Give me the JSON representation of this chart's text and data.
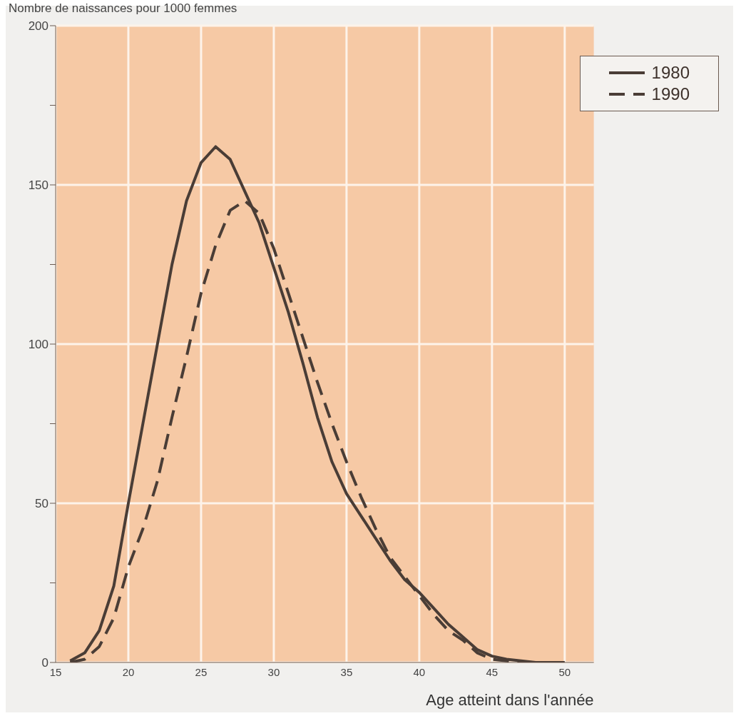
{
  "chart_data": {
    "type": "line",
    "ylabel": "Nombre de naissances pour 1000 femmes",
    "xlabel": "Age atteint dans l'année",
    "x": [
      16,
      17,
      18,
      19,
      20,
      21,
      22,
      23,
      24,
      25,
      26,
      27,
      28,
      29,
      30,
      31,
      32,
      33,
      34,
      35,
      36,
      37,
      38,
      39,
      40,
      41,
      42,
      43,
      44,
      45,
      46,
      47,
      48,
      49,
      50
    ],
    "series": [
      {
        "name": "1980",
        "color": "#4a3d36",
        "line_style": "solid",
        "values": [
          0.5,
          3,
          10,
          24,
          50,
          75,
          100,
          125,
          145,
          157,
          162,
          158,
          148,
          138,
          124,
          110,
          94,
          77,
          63,
          53,
          46,
          39,
          32,
          26,
          22,
          17,
          12,
          8,
          4,
          2,
          1,
          0.5,
          0,
          0,
          0
        ]
      },
      {
        "name": "1990",
        "color": "#4a3d36",
        "line_style": "dashed",
        "values": [
          0,
          1,
          5,
          14,
          30,
          42,
          57,
          77,
          96,
          116,
          131,
          142,
          145,
          141,
          130,
          116,
          102,
          88,
          75,
          63,
          52,
          42,
          33,
          27,
          21,
          15,
          10,
          7,
          3,
          1,
          0.5,
          0,
          0,
          0,
          0
        ]
      }
    ],
    "xlim": [
      15,
      52
    ],
    "xticks": [
      15,
      20,
      25,
      30,
      35,
      40,
      45,
      50
    ],
    "ylim": [
      0,
      200
    ],
    "yticks": [
      0,
      {
        "value": 25,
        "label": null
      },
      50,
      {
        "value": 75,
        "label": null
      },
      100,
      {
        "value": 125,
        "label": null
      },
      150,
      {
        "value": 175,
        "label": null
      },
      200
    ],
    "grid": true,
    "legend": "top right",
    "marker": "none"
  }
}
